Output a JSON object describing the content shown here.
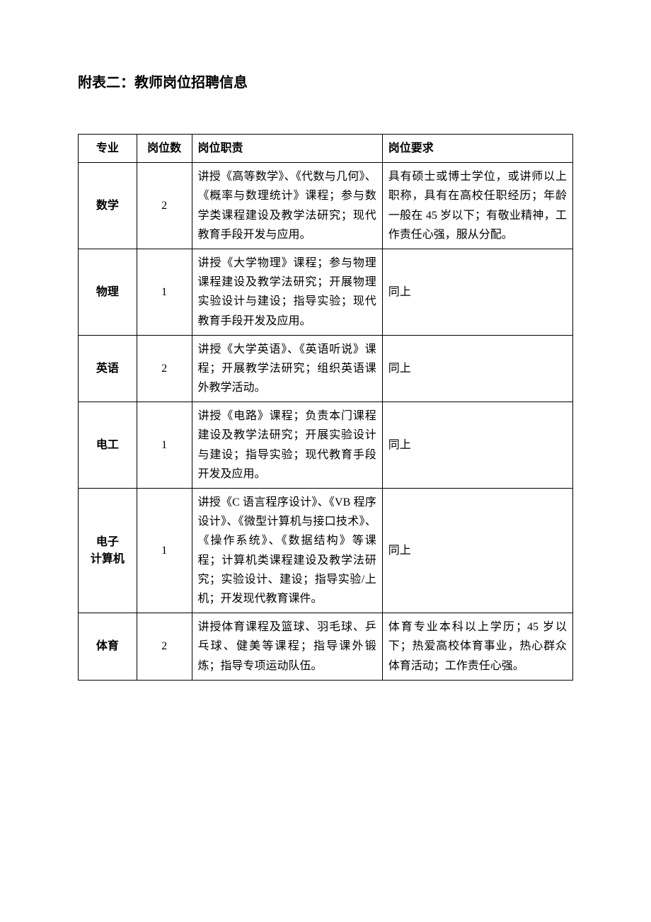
{
  "title": "附表二：教师岗位招聘信息",
  "table": {
    "headers": {
      "major": "专业",
      "count": "岗位数",
      "duty": "岗位职责",
      "requirement": "岗位要求"
    },
    "rows": [
      {
        "major": "数学",
        "count": "2",
        "duty": "讲授《高等数学》、《代数与几何》、《概率与数理统计》课程；参与数学类课程建设及教学法研究；现代教育手段开发与应用。",
        "requirement": "具有硕士或博士学位，或讲师以上职称，具有在高校任职经历；年龄一般在 45 岁以下；有敬业精神，工作责任心强，服从分配。",
        "req_center": false
      },
      {
        "major": "物理",
        "count": "1",
        "duty": "讲授《大学物理》课程；参与物理课程建设及教学法研究；开展物理实验设计与建设；指导实验；现代教育手段开发及应用。",
        "requirement": "同上",
        "req_center": true
      },
      {
        "major": "英语",
        "count": "2",
        "duty": "讲授《大学英语》、《英语听说》课程；开展教学法研究；组织英语课外教学活动。",
        "requirement": "同上",
        "req_center": true
      },
      {
        "major": "电工",
        "count": "1",
        "duty": "讲授《电路》课程；负责本门课程建设及教学法研究；开展实验设计与建设；指导实验；现代教育手段开发及应用。",
        "requirement": "同上",
        "req_center": true
      },
      {
        "major": "电子\n计算机",
        "count": "1",
        "duty": "讲授《C 语言程序设计》、《VB 程序设计》、《微型计算机与接口技术》、《操作系统》、《数据结构》等课程；计算机类课程建设及教学法研究；实验设计、建设；指导实验/上机；开发现代教育课件。",
        "requirement": "同上",
        "req_center": true
      },
      {
        "major": "体育",
        "count": "2",
        "duty": "讲授体育课程及篮球、羽毛球、乒乓球、健美等课程；指导课外锻炼；指导专项运动队伍。",
        "requirement": "体育专业本科以上学历；45 岁以下；热爱高校体育事业，热心群众体育活动；工作责任心强。",
        "req_center": false
      }
    ]
  },
  "styling": {
    "page_bg": "#ffffff",
    "text_color": "#000000",
    "border_color": "#000000",
    "title_fontsize": 20,
    "cell_fontsize": 16,
    "font_family": "SimSun",
    "col_widths": {
      "major": 80,
      "count": 75,
      "duty": 260,
      "requirement": 260
    },
    "line_height": 1.7
  }
}
